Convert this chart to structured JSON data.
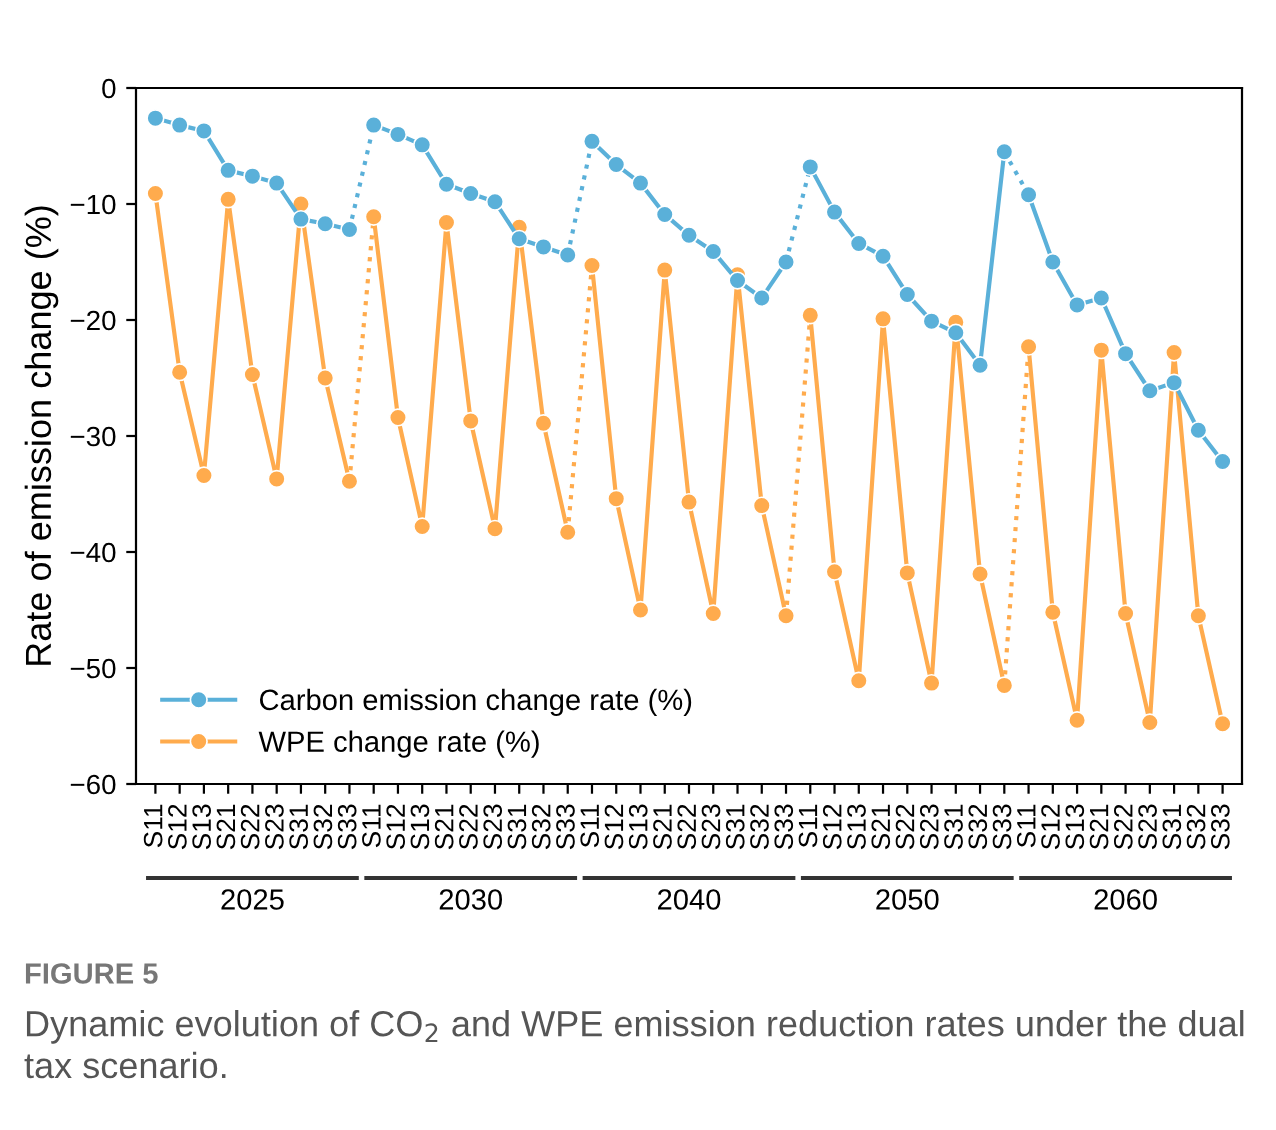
{
  "chart_data": {
    "type": "line",
    "title": "FIGURE 5",
    "subtitle": "Dynamic evolution of CO$_{2}$ and WPE emission reduction rates under the dual tax scenario.",
    "ylabel": "Rate of emission change (%)",
    "categories": [
      "S11",
      "S12",
      "S13",
      "S21",
      "S22",
      "S23",
      "S31",
      "S32",
      "S33",
      "S11",
      "S12",
      "S13",
      "S21",
      "S22",
      "S23",
      "S31",
      "S32",
      "S33",
      "S11",
      "S12",
      "S13",
      "S21",
      "S22",
      "S23",
      "S31",
      "S32",
      "S33",
      "S11",
      "S12",
      "S13",
      "S21",
      "S22",
      "S23",
      "S31",
      "S32",
      "S33",
      "S11",
      "S12",
      "S13",
      "S21",
      "S22",
      "S23",
      "S31",
      "S32",
      "S33"
    ],
    "annotations": [
      "2025",
      "2030",
      "2040",
      "2050",
      "2060"
    ],
    "series": [
      {
        "name": "Carbon emission change rate (%)",
        "color": "#5ab0d9",
        "values": [
          -2.6,
          -3.2,
          -3.7,
          -7.1,
          -7.6,
          -8.2,
          -11.3,
          -11.7,
          -12.2,
          -3.2,
          -4.0,
          -4.9,
          -8.3,
          -9.1,
          -9.8,
          -13.0,
          -13.7,
          -14.4,
          -4.6,
          -6.6,
          -8.2,
          -10.9,
          -12.7,
          -14.1,
          -16.6,
          -18.1,
          -15.0,
          -6.8,
          -10.7,
          -13.4,
          -14.5,
          -17.8,
          -20.1,
          -21.1,
          -23.9,
          -5.5,
          -9.2,
          -15.0,
          -18.7,
          -18.1,
          -22.9,
          -26.1,
          -25.4,
          -29.5,
          -32.2
        ]
      },
      {
        "name": "WPE change rate (%)",
        "color": "#ffab4d",
        "values": [
          -9.1,
          -24.5,
          -33.4,
          -9.6,
          -24.7,
          -33.7,
          -10.0,
          -25.0,
          -33.9,
          -11.1,
          -28.4,
          -37.8,
          -11.6,
          -28.7,
          -38.0,
          -12.0,
          -28.9,
          -38.3,
          -15.3,
          -35.4,
          -45.0,
          -15.7,
          -35.7,
          -45.3,
          -16.1,
          -36.0,
          -45.5,
          -19.6,
          -41.7,
          -51.1,
          -19.9,
          -41.8,
          -51.3,
          -20.2,
          -41.9,
          -51.5,
          -22.3,
          -45.2,
          -54.5,
          -22.6,
          -45.3,
          -54.7,
          -22.8,
          -45.5,
          -54.8
        ]
      }
    ],
    "ylim": [
      -60,
      0
    ],
    "yticks": [
      {
        "value": -60,
        "label": "−60"
      },
      {
        "value": -50,
        "label": "−50"
      },
      {
        "value": -40,
        "label": "−40"
      },
      {
        "value": -30,
        "label": "−30"
      },
      {
        "value": -20,
        "label": "−20"
      },
      {
        "value": -10,
        "label": "−10"
      },
      0
    ],
    "marker": "circle",
    "line_style": "solid",
    "legend": "bottom left",
    "grid": false
  }
}
